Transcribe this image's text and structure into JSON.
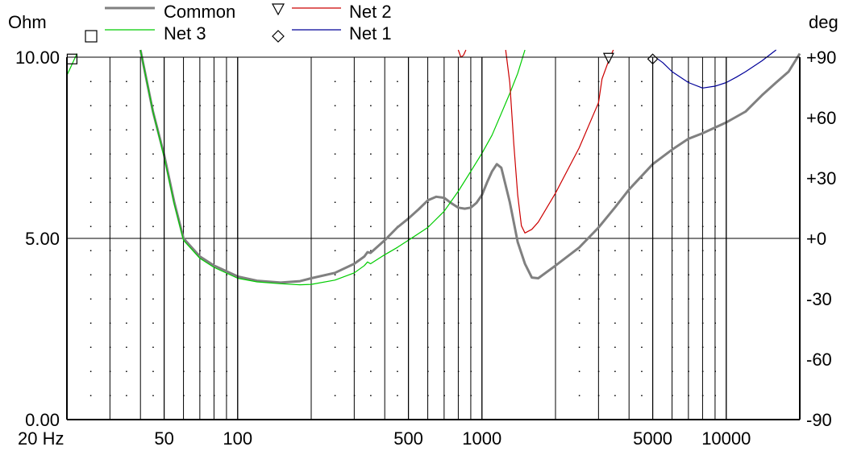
{
  "chart_data": {
    "type": "line",
    "xscale": "log",
    "xlim": [
      20,
      20000
    ],
    "ylim_left": [
      0,
      10
    ],
    "ylim_right": [
      -90,
      90
    ],
    "ylabel_left": "Ohm",
    "ylabel_right": "deg",
    "x_ticks": [
      {
        "value": 20,
        "label": "20 Hz"
      },
      {
        "value": 50,
        "label": "50"
      },
      {
        "value": 100,
        "label": "100"
      },
      {
        "value": 500,
        "label": "500"
      },
      {
        "value": 1000,
        "label": "1000"
      },
      {
        "value": 5000,
        "label": "5000"
      },
      {
        "value": 10000,
        "label": "10000"
      }
    ],
    "y_left_ticks": [
      {
        "value": 10,
        "label": "10.00"
      },
      {
        "value": 5,
        "label": "5.00"
      },
      {
        "value": 0,
        "label": "0.00"
      }
    ],
    "y_right_ticks": [
      {
        "value": 90,
        "label": "+90"
      },
      {
        "value": 60,
        "label": "+60"
      },
      {
        "value": 30,
        "label": "+30"
      },
      {
        "value": 0,
        "label": "+0"
      },
      {
        "value": -30,
        "label": "-30"
      },
      {
        "value": -60,
        "label": "-60"
      },
      {
        "value": -90,
        "label": "-90"
      }
    ],
    "grid": true,
    "legend": [
      {
        "name": "Common",
        "marker": "none",
        "color": "#808080"
      },
      {
        "name": "Net 2",
        "marker": "triangle-down",
        "color": "#cc0000"
      },
      {
        "name": "Net 3",
        "marker": "square",
        "color": "#00cc00"
      },
      {
        "name": "Net 1",
        "marker": "diamond",
        "color": "#000099"
      }
    ],
    "series": [
      {
        "name": "Common",
        "color": "#808080",
        "axis": "left",
        "points": [
          [
            40,
            10.2
          ],
          [
            45,
            8.5
          ],
          [
            50,
            7.3
          ],
          [
            55,
            6.0
          ],
          [
            60,
            5.0
          ],
          [
            70,
            4.5
          ],
          [
            80,
            4.25
          ],
          [
            100,
            3.95
          ],
          [
            120,
            3.83
          ],
          [
            150,
            3.78
          ],
          [
            180,
            3.82
          ],
          [
            200,
            3.9
          ],
          [
            250,
            4.05
          ],
          [
            300,
            4.3
          ],
          [
            330,
            4.5
          ],
          [
            340,
            4.62
          ],
          [
            350,
            4.6
          ],
          [
            400,
            4.95
          ],
          [
            450,
            5.3
          ],
          [
            500,
            5.55
          ],
          [
            550,
            5.8
          ],
          [
            600,
            6.05
          ],
          [
            650,
            6.15
          ],
          [
            700,
            6.12
          ],
          [
            750,
            5.97
          ],
          [
            800,
            5.85
          ],
          [
            850,
            5.82
          ],
          [
            900,
            5.85
          ],
          [
            950,
            5.98
          ],
          [
            1000,
            6.2
          ],
          [
            1050,
            6.55
          ],
          [
            1100,
            6.85
          ],
          [
            1150,
            7.05
          ],
          [
            1200,
            6.95
          ],
          [
            1300,
            6.0
          ],
          [
            1400,
            4.9
          ],
          [
            1500,
            4.3
          ],
          [
            1600,
            3.92
          ],
          [
            1700,
            3.9
          ],
          [
            2000,
            4.25
          ],
          [
            2500,
            4.75
          ],
          [
            3000,
            5.3
          ],
          [
            3500,
            5.85
          ],
          [
            4000,
            6.35
          ],
          [
            5000,
            7.05
          ],
          [
            6000,
            7.45
          ],
          [
            7000,
            7.75
          ],
          [
            8000,
            7.9
          ],
          [
            10000,
            8.2
          ],
          [
            12000,
            8.5
          ],
          [
            14000,
            8.95
          ],
          [
            16000,
            9.3
          ],
          [
            18000,
            9.6
          ],
          [
            20000,
            10.1
          ]
        ]
      },
      {
        "name": "Net 3",
        "color": "#00cc00",
        "axis": "left",
        "points": [
          [
            20,
            9.5
          ],
          [
            22,
            10.1
          ]
        ]
      },
      {
        "name": "Net 3",
        "color": "#00cc00",
        "axis": "left",
        "points": [
          [
            40,
            10.2
          ],
          [
            45,
            8.5
          ],
          [
            50,
            7.25
          ],
          [
            55,
            5.95
          ],
          [
            60,
            4.95
          ],
          [
            70,
            4.45
          ],
          [
            80,
            4.2
          ],
          [
            100,
            3.9
          ],
          [
            120,
            3.8
          ],
          [
            150,
            3.75
          ],
          [
            180,
            3.72
          ],
          [
            200,
            3.73
          ],
          [
            250,
            3.85
          ],
          [
            300,
            4.05
          ],
          [
            330,
            4.25
          ],
          [
            340,
            4.35
          ],
          [
            350,
            4.3
          ],
          [
            400,
            4.55
          ],
          [
            450,
            4.75
          ],
          [
            500,
            4.95
          ],
          [
            600,
            5.3
          ],
          [
            700,
            5.75
          ],
          [
            800,
            6.3
          ],
          [
            900,
            6.85
          ],
          [
            1000,
            7.35
          ],
          [
            1100,
            7.85
          ],
          [
            1200,
            8.45
          ],
          [
            1300,
            9.0
          ],
          [
            1400,
            9.55
          ],
          [
            1500,
            10.2
          ]
        ]
      },
      {
        "name": "Net 2",
        "color": "#cc0000",
        "axis": "left",
        "points": [
          [
            800,
            10.2
          ],
          [
            820,
            10.0
          ],
          [
            840,
            10.05
          ],
          [
            860,
            10.2
          ]
        ]
      },
      {
        "name": "Net 2",
        "color": "#cc0000",
        "axis": "left",
        "points": [
          [
            1250,
            10.2
          ],
          [
            1300,
            9.3
          ],
          [
            1350,
            7.6
          ],
          [
            1400,
            6.2
          ],
          [
            1450,
            5.35
          ],
          [
            1500,
            5.15
          ],
          [
            1600,
            5.25
          ],
          [
            1700,
            5.45
          ],
          [
            2000,
            6.25
          ],
          [
            2500,
            7.5
          ],
          [
            3000,
            8.75
          ],
          [
            3100,
            9.4
          ],
          [
            3300,
            9.9
          ],
          [
            3450,
            10.2
          ]
        ]
      },
      {
        "name": "Net 1",
        "color": "#000099",
        "axis": "left",
        "points": [
          [
            5000,
            10.05
          ],
          [
            5500,
            9.85
          ],
          [
            6000,
            9.6
          ],
          [
            7000,
            9.3
          ],
          [
            8000,
            9.15
          ],
          [
            9000,
            9.2
          ],
          [
            10000,
            9.3
          ],
          [
            11000,
            9.45
          ],
          [
            12000,
            9.6
          ],
          [
            14000,
            9.9
          ],
          [
            16000,
            10.2
          ]
        ]
      }
    ],
    "markers": [
      {
        "name": "Net 2",
        "shape": "triangle-down",
        "x": 3300,
        "y": 9.95
      },
      {
        "name": "Net 1",
        "shape": "diamond",
        "x": 5000,
        "y": 9.95
      },
      {
        "name": "Net 3",
        "shape": "square",
        "x": 21,
        "y": 9.95
      }
    ]
  }
}
